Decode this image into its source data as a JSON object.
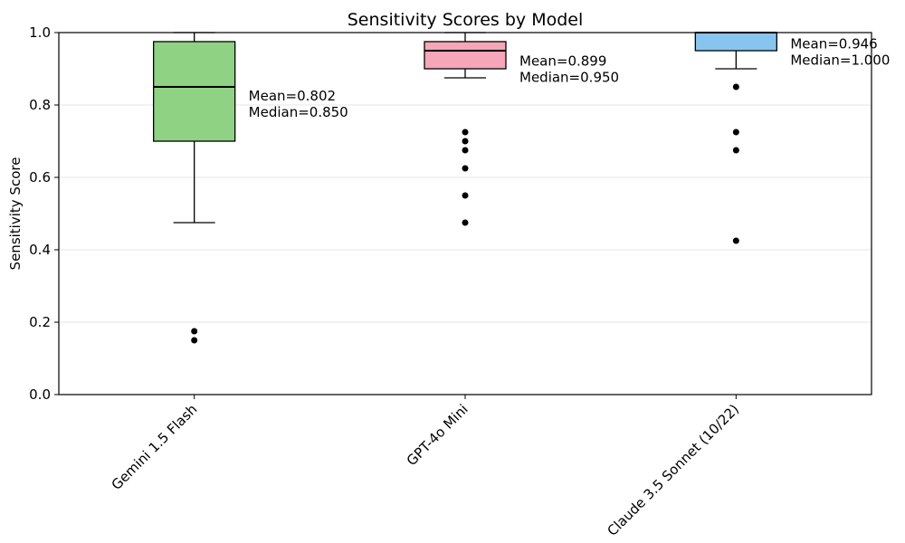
{
  "chart_data": {
    "type": "boxplot",
    "title": "Sensitivity Scores by Model",
    "xlabel": "",
    "ylabel": "Sensitivity Score",
    "ylim": [
      0.0,
      1.0
    ],
    "grid": "horizontal",
    "legend": "none",
    "colors": {
      "grid": "#e6e6e6",
      "axis": "#000000",
      "text": "#000000",
      "flier": "#000000",
      "median_line": "#000000"
    },
    "yticks": [
      {
        "value": 0.0,
        "label": "0.0"
      },
      {
        "value": 0.2,
        "label": "0.2"
      },
      {
        "value": 0.4,
        "label": "0.4"
      },
      {
        "value": 0.6,
        "label": "0.6"
      },
      {
        "value": 0.8,
        "label": "0.8"
      },
      {
        "value": 1.0,
        "label": "1.0"
      }
    ],
    "series": [
      {
        "label": "Gemini 1.5 Flash",
        "color": "#90d283",
        "whisker_low": 0.475,
        "q1": 0.7,
        "median": 0.85,
        "q3": 0.975,
        "whisker_high": 1.0,
        "mean": 0.802,
        "outliers": [
          0.175,
          0.15
        ],
        "mean_label": "Mean=0.802",
        "median_label": "Median=0.850"
      },
      {
        "label": "GPT-4o Mini",
        "color": "#f5a6b8",
        "whisker_low": 0.875,
        "q1": 0.9,
        "median": 0.95,
        "q3": 0.975,
        "whisker_high": 1.0,
        "mean": 0.899,
        "outliers": [
          0.725,
          0.7,
          0.675,
          0.625,
          0.55,
          0.475
        ],
        "mean_label": "Mean=0.899",
        "median_label": "Median=0.950"
      },
      {
        "label": "Claude 3.5 Sonnet (10/22)",
        "color": "#87c5ee",
        "whisker_low": 0.9,
        "q1": 0.95,
        "median": 1.0,
        "q3": 1.0,
        "whisker_high": 1.0,
        "mean": 0.946,
        "outliers": [
          0.85,
          0.725,
          0.675,
          0.425
        ],
        "mean_label": "Mean=0.946",
        "median_label": "Median=1.000"
      }
    ]
  }
}
